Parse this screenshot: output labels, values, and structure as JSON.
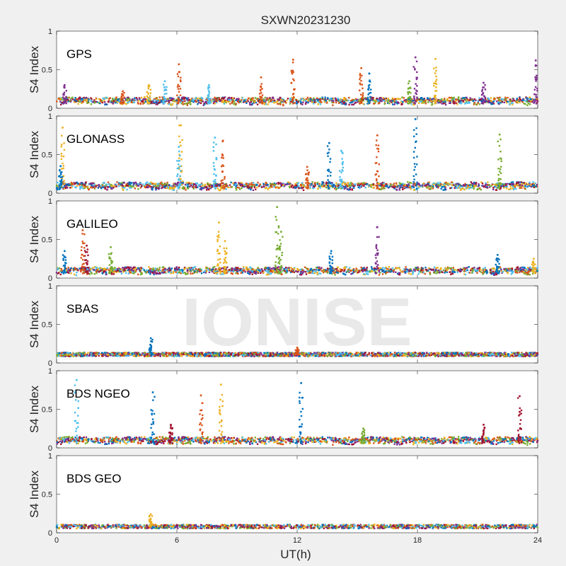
{
  "chart_data": {
    "type": "scatter",
    "title": "SXWN20231230",
    "xlabel": "UT(h)",
    "ylabel": "S4 Index",
    "xlim": [
      0,
      24
    ],
    "ylim": [
      0,
      1
    ],
    "x_ticks": [
      "0",
      "6",
      "12",
      "18",
      "24"
    ],
    "y_ticks": [
      "0",
      "0.5",
      "1"
    ],
    "watermark": "IONISE",
    "colors": [
      "#0072bd",
      "#d95319",
      "#edb120",
      "#7e2f8e",
      "#77ac30",
      "#4dbeee",
      "#a2142f"
    ],
    "panels": [
      {
        "label": "GPS",
        "baseline": 0.06,
        "spikes": [
          {
            "t": 0.4,
            "peak": 0.3,
            "color": 3
          },
          {
            "t": 3.3,
            "peak": 0.22,
            "color": 1
          },
          {
            "t": 4.6,
            "peak": 0.3,
            "color": 2
          },
          {
            "t": 5.4,
            "peak": 0.35,
            "color": 5
          },
          {
            "t": 6.1,
            "peak": 0.57,
            "color": 1
          },
          {
            "t": 7.6,
            "peak": 0.3,
            "color": 5
          },
          {
            "t": 10.2,
            "peak": 0.4,
            "color": 1
          },
          {
            "t": 11.8,
            "peak": 0.63,
            "color": 1
          },
          {
            "t": 15.2,
            "peak": 0.52,
            "color": 1
          },
          {
            "t": 15.6,
            "peak": 0.45,
            "color": 0
          },
          {
            "t": 17.6,
            "peak": 0.35,
            "color": 4
          },
          {
            "t": 17.9,
            "peak": 0.66,
            "color": 3
          },
          {
            "t": 18.9,
            "peak": 0.64,
            "color": 2
          },
          {
            "t": 21.3,
            "peak": 0.33,
            "color": 3
          },
          {
            "t": 23.9,
            "peak": 0.62,
            "color": 3
          }
        ]
      },
      {
        "label": "GLONASS",
        "baseline": 0.06,
        "spikes": [
          {
            "t": 0.3,
            "peak": 0.85,
            "color": 2
          },
          {
            "t": 0.2,
            "peak": 0.35,
            "color": 0
          },
          {
            "t": 6.2,
            "peak": 0.88,
            "color": 2
          },
          {
            "t": 6.1,
            "peak": 0.6,
            "color": 5
          },
          {
            "t": 7.9,
            "peak": 0.72,
            "color": 5
          },
          {
            "t": 8.3,
            "peak": 0.68,
            "color": 1
          },
          {
            "t": 12.5,
            "peak": 0.34,
            "color": 1
          },
          {
            "t": 13.6,
            "peak": 0.65,
            "color": 0
          },
          {
            "t": 14.2,
            "peak": 0.55,
            "color": 5
          },
          {
            "t": 16.0,
            "peak": 0.75,
            "color": 1
          },
          {
            "t": 17.9,
            "peak": 0.96,
            "color": 0
          },
          {
            "t": 22.1,
            "peak": 0.76,
            "color": 4
          }
        ]
      },
      {
        "label": "GALILEO",
        "baseline": 0.06,
        "spikes": [
          {
            "t": 0.4,
            "peak": 0.35,
            "color": 0
          },
          {
            "t": 1.5,
            "peak": 0.42,
            "color": 6
          },
          {
            "t": 1.3,
            "peak": 0.62,
            "color": 1
          },
          {
            "t": 2.7,
            "peak": 0.4,
            "color": 4
          },
          {
            "t": 8.1,
            "peak": 0.72,
            "color": 2
          },
          {
            "t": 8.4,
            "peak": 0.48,
            "color": 2
          },
          {
            "t": 11.0,
            "peak": 0.92,
            "color": 4
          },
          {
            "t": 11.2,
            "peak": 0.6,
            "color": 4
          },
          {
            "t": 13.7,
            "peak": 0.35,
            "color": 0
          },
          {
            "t": 16.0,
            "peak": 0.66,
            "color": 3
          },
          {
            "t": 22.0,
            "peak": 0.3,
            "color": 0
          },
          {
            "t": 23.8,
            "peak": 0.25,
            "color": 2
          }
        ]
      },
      {
        "label": "SBAS",
        "baseline": 0.11,
        "spikes": [
          {
            "t": 4.7,
            "peak": 0.32,
            "color": 0
          },
          {
            "t": 12.0,
            "peak": 0.2,
            "color": 1
          }
        ]
      },
      {
        "label": "BDS NGEO",
        "baseline": 0.06,
        "spikes": [
          {
            "t": 1.0,
            "peak": 0.88,
            "color": 5
          },
          {
            "t": 4.8,
            "peak": 0.72,
            "color": 0
          },
          {
            "t": 5.7,
            "peak": 0.3,
            "color": 6
          },
          {
            "t": 7.2,
            "peak": 0.68,
            "color": 1
          },
          {
            "t": 8.2,
            "peak": 0.82,
            "color": 2
          },
          {
            "t": 12.2,
            "peak": 0.84,
            "color": 0
          },
          {
            "t": 15.3,
            "peak": 0.25,
            "color": 4
          },
          {
            "t": 21.3,
            "peak": 0.3,
            "color": 6
          },
          {
            "t": 23.1,
            "peak": 0.67,
            "color": 6
          }
        ]
      },
      {
        "label": "BDS GEO",
        "baseline": 0.08,
        "spikes": [
          {
            "t": 4.7,
            "peak": 0.24,
            "color": 2
          }
        ]
      }
    ]
  }
}
